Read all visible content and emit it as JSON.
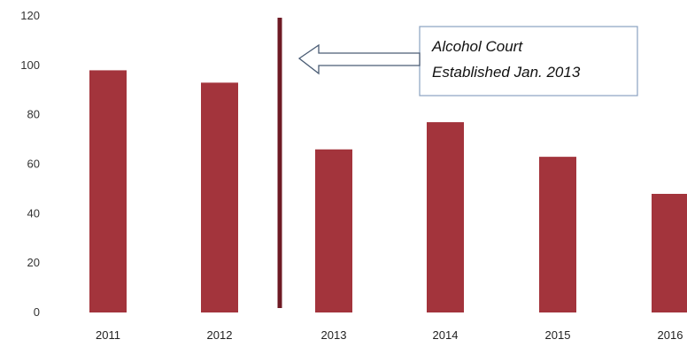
{
  "chart_data": {
    "type": "bar",
    "categories": [
      "2011",
      "2012",
      "2013",
      "2014",
      "2015",
      "2016"
    ],
    "values": [
      98,
      93,
      66,
      77,
      63,
      48
    ],
    "ylim": [
      0,
      120
    ],
    "yticks": [
      0,
      20,
      40,
      60,
      80,
      100,
      120
    ],
    "grid": false,
    "bar_color": "#a3343c",
    "marker": {
      "between": [
        "2012",
        "2013"
      ],
      "color": "#6e1a24",
      "annotation": [
        "Alcohol Court",
        "Established Jan. 2013"
      ]
    }
  }
}
